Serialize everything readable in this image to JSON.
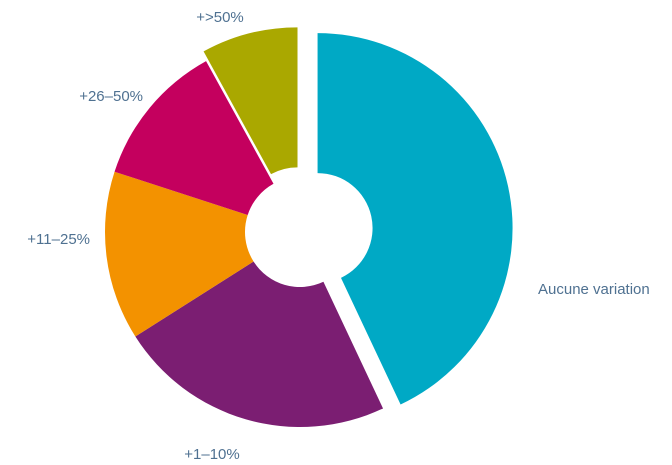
{
  "chart_data": {
    "type": "donut",
    "categories": [
      "Aucune variation",
      "+1–10%",
      "+11–25%",
      "+26–50%",
      "+>50%"
    ],
    "values": [
      43,
      23,
      14,
      12,
      8
    ],
    "colors": [
      "#00a9c5",
      "#7b1e72",
      "#f39200",
      "#c4005e",
      "#aaa800"
    ]
  }
}
